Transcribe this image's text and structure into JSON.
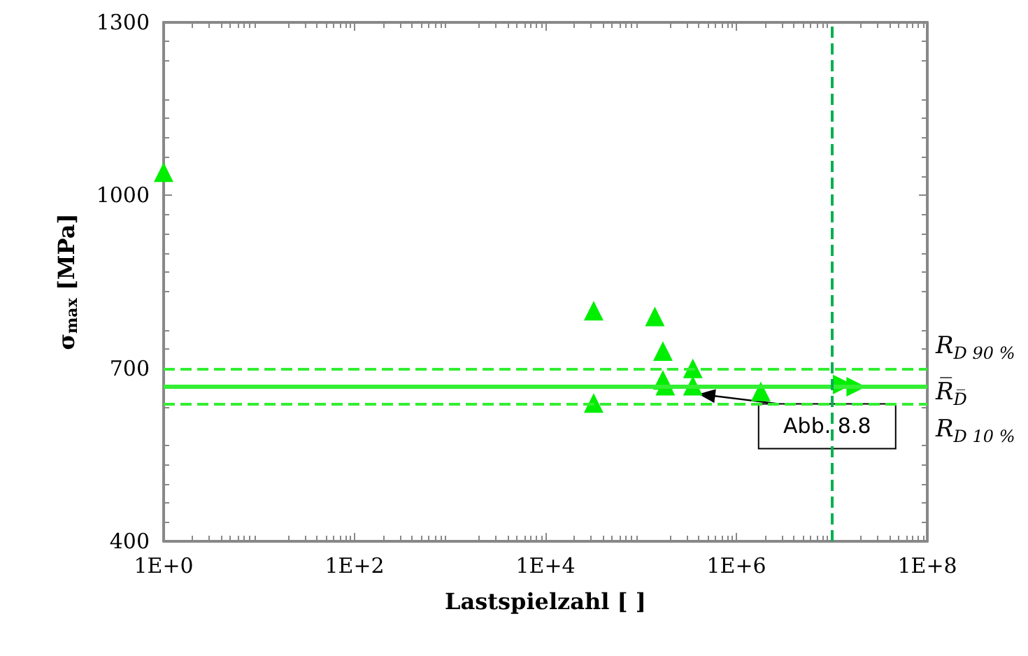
{
  "chart_data": {
    "type": "scatter",
    "xlabel": "Lastspielzahl [ ]",
    "ylabel": "σ$_{max}$ [MPa]",
    "log": "x",
    "xlim": [
      1,
      100000000
    ],
    "ylim": [
      400,
      1300
    ],
    "xticks": [
      {
        "value": 1,
        "label": "1E+0"
      },
      {
        "value": 100,
        "label": "1E+2"
      },
      {
        "value": 10000,
        "label": "1E+4"
      },
      {
        "value": 1000000,
        "label": "1E+6"
      },
      {
        "value": 100000000,
        "label": "1E+8"
      }
    ],
    "yticks": [
      400,
      700,
      1000,
      1300
    ],
    "grid": false,
    "marker": "triangle",
    "series": [
      {
        "color": "#00ee00",
        "x": [
          1,
          32000,
          32000,
          140000,
          170000,
          170000,
          180000,
          350000,
          350000,
          1800000
        ],
        "values": [
          1040,
          800,
          640,
          790,
          730,
          680,
          670,
          700,
          670,
          660
        ]
      },
      {
        "color": "#00ee00",
        "x": [
          13000000,
          18000000
        ],
        "values": [
          672,
          668
        ]
      }
    ],
    "ref_lines": [
      {
        "axis": "y",
        "value": 700,
        "label": "R$_{D 90 %}$",
        "color": "#33ee33",
        "line_style": "dashed"
      },
      {
        "axis": "y",
        "value": 668,
        "label": "R̅$_{D̅}$",
        "color": "#33ee33",
        "line_style": "solid"
      },
      {
        "axis": "y",
        "value": 638,
        "label": "R$_{D 10 %}$",
        "color": "#33ee33",
        "line_style": "dashed"
      },
      {
        "axis": "x",
        "value": 10000000,
        "color": "#00b050",
        "line_style": "dashed"
      }
    ],
    "annotations": [
      {
        "text": "Abb. 8.8",
        "x": 350000,
        "y": 670
      }
    ]
  }
}
